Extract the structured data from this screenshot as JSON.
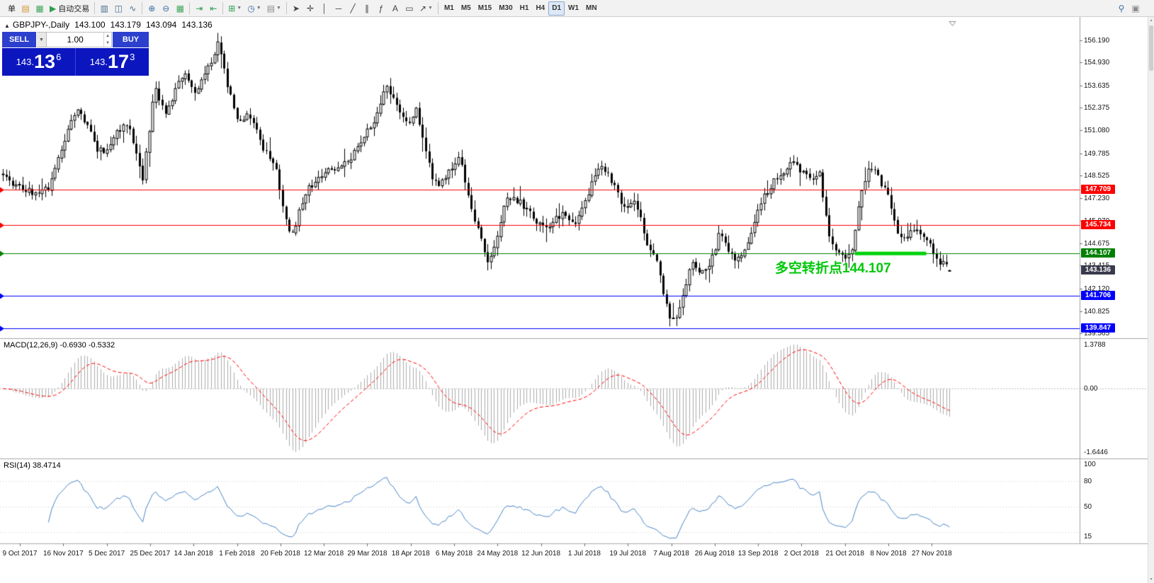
{
  "toolbar": {
    "groups": [
      {
        "buttons": [
          {
            "name": "order-ticket-button",
            "label": "单"
          },
          {
            "name": "new-order-button",
            "icon": "▤",
            "icon_color": "#d2942f"
          },
          {
            "name": "chart-list-button",
            "icon": "▦",
            "icon_color": "#3fa45a"
          },
          {
            "name": "autotrading-button",
            "label": "自动交易",
            "icon": "▶",
            "icon_color": "#2e9e4f"
          }
        ]
      },
      {
        "buttons": [
          {
            "name": "bar-chart-mode-button",
            "icon": "▥",
            "icon_color": "#4a6d8c"
          },
          {
            "name": "candlestick-mode-button",
            "icon": "◫",
            "icon_color": "#4a6d8c"
          },
          {
            "name": "line-chart-mode-button",
            "icon": "∿",
            "icon_color": "#4a6d8c"
          }
        ]
      },
      {
        "buttons": [
          {
            "name": "zoom-in-button",
            "icon": "⊕",
            "icon_color": "#3a6ea5"
          },
          {
            "name": "zoom-out-button",
            "icon": "⊖",
            "icon_color": "#3a6ea5"
          },
          {
            "name": "grid-button",
            "icon": "▦",
            "icon_color": "#3fa45a"
          }
        ]
      },
      {
        "buttons": [
          {
            "name": "auto-scroll-button",
            "icon": "⇥",
            "icon_color": "#2e9e4f"
          },
          {
            "name": "chart-shift-button",
            "icon": "⇤",
            "icon_color": "#2e9e4f"
          }
        ]
      },
      {
        "buttons": [
          {
            "name": "new-chart-button",
            "icon": "⊞",
            "icon_color": "#2e9e4f",
            "dropdown": true
          },
          {
            "name": "period-button",
            "icon": "◷",
            "icon_color": "#3a6ea5",
            "dropdown": true
          },
          {
            "name": "template-button",
            "icon": "▤",
            "icon_color": "#8a8a8a",
            "dropdown": true
          }
        ]
      },
      {
        "buttons": [
          {
            "name": "cursor-button",
            "icon": "➤",
            "icon_color": "#444444"
          },
          {
            "name": "crosshair-button",
            "icon": "✛",
            "icon_color": "#444444"
          },
          {
            "name": "vertical-line-button",
            "icon": "│",
            "icon_color": "#444444"
          },
          {
            "name": "horizontal-line-button",
            "icon": "─",
            "icon_color": "#444444"
          },
          {
            "name": "trendline-button",
            "icon": "╱",
            "icon_color": "#444444"
          },
          {
            "name": "channel-button",
            "icon": "∥",
            "icon_color": "#444444"
          },
          {
            "name": "fibonacci-button",
            "icon": "ƒ",
            "icon_color": "#444444"
          },
          {
            "name": "text-button",
            "icon": "A",
            "icon_color": "#444444"
          },
          {
            "name": "label-button",
            "icon": "▭",
            "icon_color": "#444444"
          },
          {
            "name": "arrows-button",
            "icon": "↗",
            "icon_color": "#444444",
            "dropdown": true
          }
        ]
      },
      {
        "tf": true,
        "buttons": [
          {
            "name": "tf-m1-button",
            "label": "M1"
          },
          {
            "name": "tf-m5-button",
            "label": "M5"
          },
          {
            "name": "tf-m15-button",
            "label": "M15"
          },
          {
            "name": "tf-m30-button",
            "label": "M30"
          },
          {
            "name": "tf-h1-button",
            "label": "H1"
          },
          {
            "name": "tf-h4-button",
            "label": "H4"
          },
          {
            "name": "tf-d1-button",
            "label": "D1",
            "active": true
          },
          {
            "name": "tf-w1-button",
            "label": "W1"
          },
          {
            "name": "tf-mn-button",
            "label": "MN"
          }
        ]
      }
    ],
    "right_buttons": [
      {
        "name": "search-button",
        "icon": "⚲",
        "icon_color": "#3a6ea5"
      },
      {
        "name": "workspace-button",
        "icon": "▣",
        "icon_color": "#8a8a8a"
      }
    ]
  },
  "chart": {
    "title": {
      "collapse_icon": "▲",
      "symbol_period": "GBPJPY-,Daily",
      "open": "143.100",
      "high": "143.179",
      "low": "143.094",
      "close": "143.136"
    },
    "one_click": {
      "sell_label": "SELL",
      "buy_label": "BUY",
      "volume": "1.00",
      "bid": {
        "prefix": "143.",
        "big": "13",
        "sup": "6"
      },
      "ask": {
        "prefix": "143.",
        "big": "17",
        "sup": "3"
      }
    },
    "annotation": {
      "text": "多空转折点144.107",
      "color": "#00c80a"
    },
    "levels": [
      {
        "price": 147.709,
        "label": "147.709",
        "color": "#ff0000"
      },
      {
        "price": 145.734,
        "label": "145.734",
        "color": "#ff0000"
      },
      {
        "price": 144.107,
        "label": "144.107",
        "color": "#008000"
      },
      {
        "price": 141.706,
        "label": "141.706",
        "color": "#0000ff"
      },
      {
        "price": 139.847,
        "label": "139.847",
        "color": "#0000ff"
      }
    ],
    "current_price": {
      "price": 143.136,
      "label": "143.136",
      "color": "#3a3a4d"
    }
  },
  "indicators": {
    "macd": {
      "label": "MACD(12,26,9) -0.6930 -0.5332",
      "fast": 12,
      "slow": 26,
      "signal": 9,
      "axis_max": "1.3788",
      "axis_zero": "0.00",
      "axis_min": "-1.6446",
      "histogram_color": "#ababab",
      "signal_color": "#ff0000"
    },
    "rsi": {
      "label": "RSI(14) 38.4714",
      "period": 14,
      "axis_labels": [
        "100",
        "80",
        "50",
        "15"
      ],
      "level_lines": [
        80,
        50,
        20
      ],
      "line_color": "#4a86c8"
    }
  },
  "chart_data": {
    "type": "candlestick",
    "symbol": "GBPJPY-",
    "timeframe": "Daily",
    "last_bar": {
      "open": 143.1,
      "high": 143.179,
      "low": 143.094,
      "close": 143.136
    },
    "ylim": [
      139.3,
      157.35
    ],
    "bars": 292,
    "dates": [
      "9 Oct 2017",
      "16 Nov 2017",
      "5 Dec 2017",
      "25 Dec 2017",
      "14 Jan 2018",
      "1 Feb 2018",
      "20 Feb 2018",
      "12 Mar 2018",
      "29 Mar 2018",
      "18 Apr 2018",
      "6 May 2018",
      "24 May 2018",
      "12 Jun 2018",
      "1 Jul 2018",
      "19 Jul 2018",
      "7 Aug 2018",
      "26 Aug 2018",
      "13 Sep 2018",
      "2 Oct 2018",
      "21 Oct 2018",
      "8 Nov 2018",
      "27 Nov 2018"
    ],
    "price_ticks": [
      "156.190",
      "154.930",
      "153.635",
      "152.375",
      "151.080",
      "149.785",
      "148.525",
      "147.230",
      "145.970",
      "144.675",
      "143.415",
      "142.120",
      "140.825",
      "139.565"
    ],
    "close_path_anchors": [
      [
        0.0,
        148.6
      ],
      [
        0.012,
        148.0
      ],
      [
        0.03,
        147.6
      ],
      [
        0.048,
        147.8
      ],
      [
        0.063,
        150.3
      ],
      [
        0.078,
        152.4
      ],
      [
        0.09,
        151.2
      ],
      [
        0.1,
        150.0
      ],
      [
        0.108,
        149.8
      ],
      [
        0.12,
        151.0
      ],
      [
        0.132,
        151.5
      ],
      [
        0.148,
        148.3
      ],
      [
        0.16,
        153.5
      ],
      [
        0.172,
        152.1
      ],
      [
        0.19,
        154.3
      ],
      [
        0.205,
        153.2
      ],
      [
        0.218,
        154.8
      ],
      [
        0.228,
        156.1
      ],
      [
        0.238,
        153.5
      ],
      [
        0.248,
        151.8
      ],
      [
        0.262,
        151.9
      ],
      [
        0.275,
        150.1
      ],
      [
        0.289,
        148.9
      ],
      [
        0.298,
        146.0
      ],
      [
        0.305,
        145.1
      ],
      [
        0.32,
        147.6
      ],
      [
        0.335,
        148.6
      ],
      [
        0.352,
        148.9
      ],
      [
        0.368,
        149.6
      ],
      [
        0.381,
        150.8
      ],
      [
        0.392,
        151.6
      ],
      [
        0.405,
        153.7
      ],
      [
        0.417,
        152.3
      ],
      [
        0.428,
        151.3
      ],
      [
        0.437,
        152.3
      ],
      [
        0.452,
        148.6
      ],
      [
        0.46,
        147.7
      ],
      [
        0.472,
        148.9
      ],
      [
        0.483,
        149.5
      ],
      [
        0.497,
        146.2
      ],
      [
        0.513,
        143.6
      ],
      [
        0.524,
        145.5
      ],
      [
        0.532,
        147.4
      ],
      [
        0.548,
        146.9
      ],
      [
        0.565,
        145.9
      ],
      [
        0.578,
        145.7
      ],
      [
        0.592,
        146.4
      ],
      [
        0.605,
        145.6
      ],
      [
        0.625,
        148.4
      ],
      [
        0.633,
        149.1
      ],
      [
        0.645,
        148.0
      ],
      [
        0.655,
        146.7
      ],
      [
        0.668,
        147.1
      ],
      [
        0.682,
        144.3
      ],
      [
        0.692,
        143.6
      ],
      [
        0.7,
        141.3
      ],
      [
        0.706,
        140.1
      ],
      [
        0.715,
        141.0
      ],
      [
        0.727,
        143.5
      ],
      [
        0.74,
        143.0
      ],
      [
        0.75,
        144.0
      ],
      [
        0.758,
        145.4
      ],
      [
        0.772,
        143.6
      ],
      [
        0.785,
        144.3
      ],
      [
        0.796,
        146.5
      ],
      [
        0.808,
        147.7
      ],
      [
        0.822,
        148.7
      ],
      [
        0.835,
        149.2
      ],
      [
        0.845,
        148.6
      ],
      [
        0.852,
        148.3
      ],
      [
        0.862,
        148.8
      ],
      [
        0.873,
        145.0
      ],
      [
        0.882,
        144.2
      ],
      [
        0.89,
        143.9
      ],
      [
        0.898,
        144.6
      ],
      [
        0.906,
        147.3
      ],
      [
        0.915,
        149.2
      ],
      [
        0.925,
        148.3
      ],
      [
        0.935,
        147.4
      ],
      [
        0.945,
        145.1
      ],
      [
        0.952,
        144.9
      ],
      [
        0.96,
        145.6
      ],
      [
        0.968,
        145.1
      ],
      [
        0.978,
        144.6
      ],
      [
        0.99,
        143.6
      ],
      [
        1.0,
        143.136
      ]
    ],
    "horizontal_lines": [
      147.709,
      145.734,
      144.107,
      141.706,
      139.847
    ],
    "highlight_segment": {
      "price": 144.107,
      "start_frac": 0.897,
      "end_frac": 0.972,
      "color": "#00d20a",
      "width": 5
    },
    "indicator_readings": {
      "macd": -0.693,
      "macd_signal": -0.5332,
      "rsi": 38.4714
    },
    "noise_seed": 11,
    "noise_amp": 0.4
  }
}
